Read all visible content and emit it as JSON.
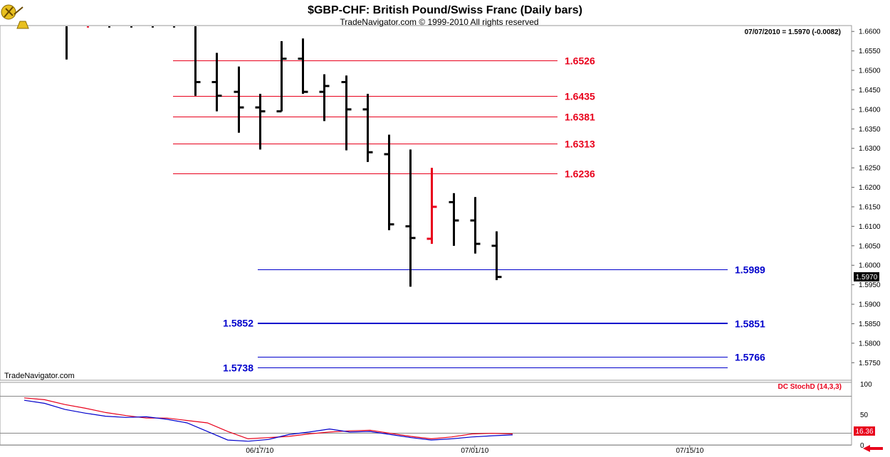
{
  "header": {
    "title": "$GBP-CHF:  British Pound/Swiss Franc  (Daily bars)",
    "subtitle": "TradeNavigator.com © 1999-2010 All rights reserved",
    "last_quote": "07/07/2010 = 1.5970 (-0.0082)",
    "watermark": "TradeNavigator.com"
  },
  "colors": {
    "up_bar": "#000000",
    "highlight_bar": "#e8001b",
    "resistance": "#e8001b",
    "support": "#0000cc",
    "stoch_k": "#e8001b",
    "stoch_d": "#0000cc",
    "price_box": "#000000",
    "stoch_box": "#e8001b"
  },
  "chart_data": [
    {
      "type": "ohlc",
      "title": "$GBP-CHF:  British Pound/Swiss Franc  (Daily bars)",
      "ylim": [
        1.5705,
        1.6615
      ],
      "y_ticks": [
        "1.6600",
        "1.6550",
        "1.6500",
        "1.6450",
        "1.6400",
        "1.6350",
        "1.6300",
        "1.6250",
        "1.6200",
        "1.6150",
        "1.6100",
        "1.6050",
        "1.6000",
        "1.5950",
        "1.5900",
        "1.5850",
        "1.5800",
        "1.5750"
      ],
      "x_labels": [
        {
          "label": "06/17/10",
          "bar": 9
        },
        {
          "label": "07/01/10",
          "bar": 19
        },
        {
          "label": "07/15/10",
          "bar": 29
        }
      ],
      "bars": [
        {
          "o": 1.664,
          "h": 1.668,
          "l": 1.6528,
          "c": 1.662,
          "color": "black"
        },
        {
          "o": 1.664,
          "h": 1.668,
          "l": 1.661,
          "c": 1.664,
          "color": "red"
        },
        {
          "o": 1.664,
          "h": 1.667,
          "l": 1.661,
          "c": 1.6625,
          "color": "black"
        },
        {
          "o": 1.663,
          "h": 1.666,
          "l": 1.661,
          "c": 1.6625,
          "color": "black"
        },
        {
          "o": 1.663,
          "h": 1.666,
          "l": 1.661,
          "c": 1.6625,
          "color": "black"
        },
        {
          "o": 1.663,
          "h": 1.665,
          "l": 1.661,
          "c": 1.6625,
          "color": "black"
        },
        {
          "o": 1.6625,
          "h": 1.662,
          "l": 1.6435,
          "c": 1.647,
          "color": "black"
        },
        {
          "o": 1.647,
          "h": 1.6545,
          "l": 1.6395,
          "c": 1.6435,
          "color": "black"
        },
        {
          "o": 1.6445,
          "h": 1.651,
          "l": 1.634,
          "c": 1.6405,
          "color": "black"
        },
        {
          "o": 1.6405,
          "h": 1.644,
          "l": 1.6297,
          "c": 1.6395,
          "color": "black"
        },
        {
          "o": 1.6395,
          "h": 1.6575,
          "l": 1.6395,
          "c": 1.653,
          "color": "black"
        },
        {
          "o": 1.653,
          "h": 1.6582,
          "l": 1.644,
          "c": 1.6445,
          "color": "black"
        },
        {
          "o": 1.6445,
          "h": 1.649,
          "l": 1.637,
          "c": 1.646,
          "color": "black"
        },
        {
          "o": 1.647,
          "h": 1.6487,
          "l": 1.6295,
          "c": 1.64,
          "color": "black"
        },
        {
          "o": 1.64,
          "h": 1.644,
          "l": 1.6265,
          "c": 1.629,
          "color": "black"
        },
        {
          "o": 1.6285,
          "h": 1.6335,
          "l": 1.609,
          "c": 1.6105,
          "color": "black"
        },
        {
          "o": 1.61,
          "h": 1.6297,
          "l": 1.5945,
          "c": 1.607,
          "color": "black"
        },
        {
          "o": 1.6068,
          "h": 1.625,
          "l": 1.6055,
          "c": 1.615,
          "color": "red"
        },
        {
          "o": 1.6162,
          "h": 1.6185,
          "l": 1.605,
          "c": 1.6115,
          "color": "black"
        },
        {
          "o": 1.6115,
          "h": 1.6175,
          "l": 1.603,
          "c": 1.6055,
          "color": "black"
        },
        {
          "o": 1.605,
          "h": 1.6087,
          "l": 1.5962,
          "c": 1.597,
          "color": "black"
        }
      ],
      "levels": [
        {
          "value": 1.6526,
          "label": "1.6526",
          "kind": "resistance",
          "from_bar": 5,
          "label_side": "right"
        },
        {
          "value": 1.6435,
          "label": "1.6435",
          "kind": "resistance",
          "from_bar": 5,
          "label_side": "right"
        },
        {
          "value": 1.6381,
          "label": "1.6381",
          "kind": "resistance",
          "from_bar": 5,
          "label_side": "right"
        },
        {
          "value": 1.6313,
          "label": "1.6313",
          "kind": "resistance",
          "from_bar": 5,
          "label_side": "right"
        },
        {
          "value": 1.6236,
          "label": "1.6236",
          "kind": "resistance",
          "from_bar": 5,
          "label_side": "right"
        },
        {
          "value": 1.5989,
          "label": "1.5989",
          "kind": "support",
          "from_bar": 9,
          "label_side": "right"
        },
        {
          "value": 1.5852,
          "label": "1.5852",
          "kind": "support",
          "from_bar": 9,
          "label_side": "left"
        },
        {
          "value": 1.5851,
          "label": "1.5851",
          "kind": "support",
          "from_bar": 9,
          "label_side": "right"
        },
        {
          "value": 1.5766,
          "label": "1.5766",
          "kind": "support",
          "from_bar": 9,
          "label_side": "right"
        },
        {
          "value": 1.5738,
          "label": "1.5738",
          "kind": "support",
          "from_bar": 9,
          "label_side": "left"
        }
      ],
      "current_price_box": "1.5970"
    },
    {
      "type": "line",
      "title": "DC StochD (14,3,3)",
      "ylim": [
        0,
        100
      ],
      "y_ticks": [
        "100",
        "50",
        "0"
      ],
      "reference_lines": [
        80,
        20
      ],
      "last_value_box": "16.36",
      "series": [
        {
          "name": "K",
          "color": "red",
          "values": [
            77,
            74,
            66,
            60,
            53,
            48,
            44,
            44,
            40,
            36,
            22,
            10,
            12,
            14,
            18,
            21,
            23,
            24,
            19,
            14,
            10,
            13,
            18,
            19,
            18
          ]
        },
        {
          "name": "D",
          "color": "blue",
          "values": [
            73,
            68,
            58,
            52,
            47,
            45,
            46,
            42,
            36,
            22,
            8,
            6,
            9,
            17,
            21,
            26,
            21,
            22,
            17,
            12,
            8,
            10,
            13,
            15,
            16.4
          ]
        }
      ]
    }
  ]
}
